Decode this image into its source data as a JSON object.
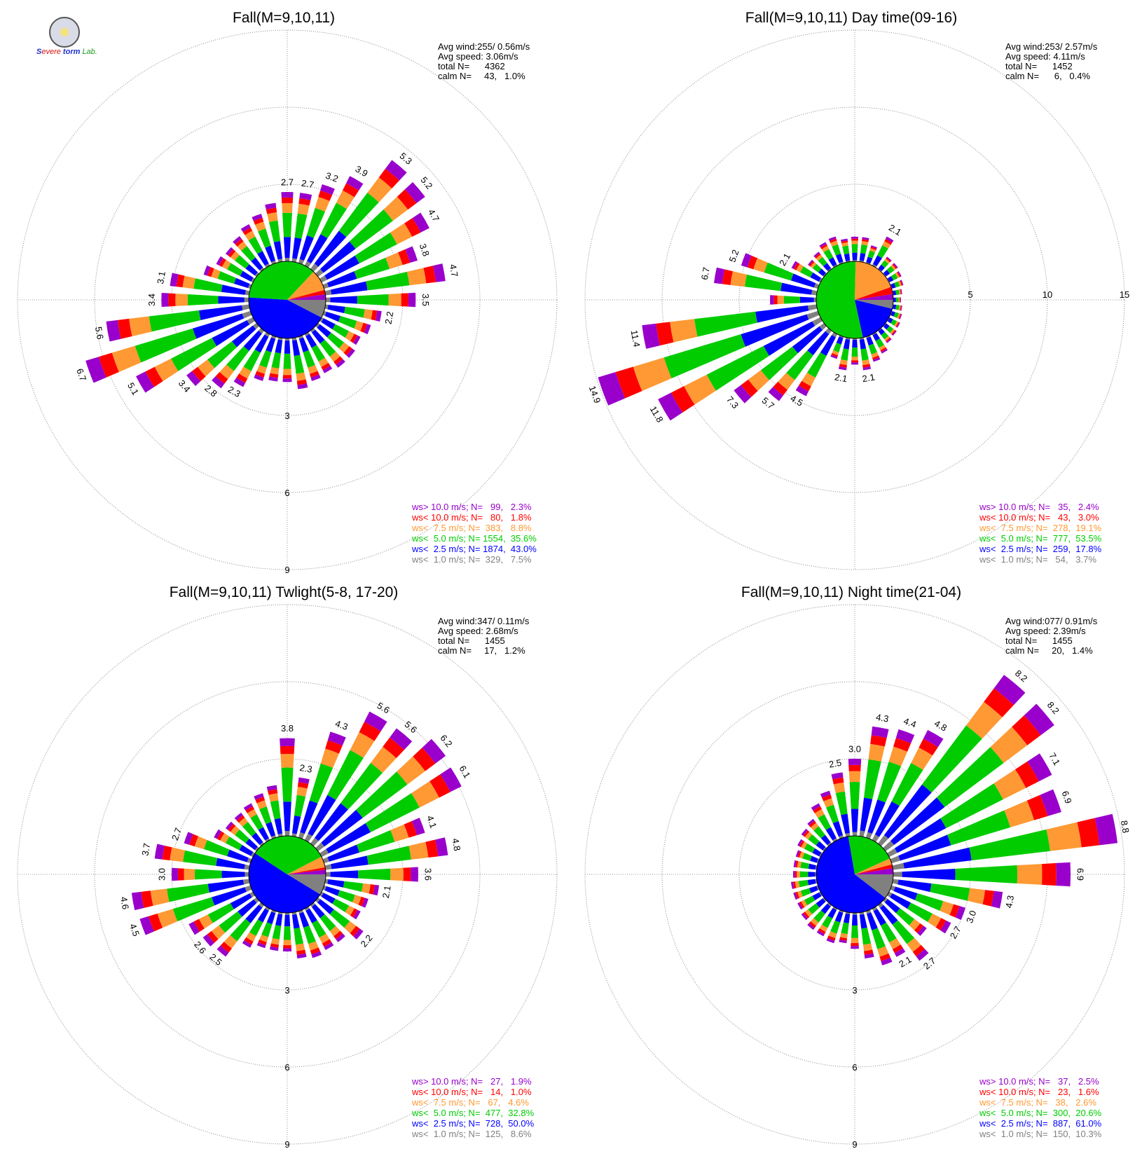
{
  "logo": {
    "text_a": "S",
    "text_b": "evere",
    "text_c": "torm",
    "text_d": "Lab.",
    "icon": "university-seal-icon"
  },
  "colors": {
    "c1": "#808080",
    "c25": "#0000ff",
    "c5": "#00cc00",
    "c75": "#ff9933",
    "c10": "#ff0000",
    "cgt10": "#9900cc"
  },
  "chart_data": [
    {
      "type": "wind-rose",
      "title": "Fall(M=9,10,11)",
      "stats": {
        "avg_wind": "Avg wind:255/ 0.56m/s",
        "avg_speed": "Avg speed: 3.06m/s",
        "total": "total N=      4362",
        "calm": "calm N=     43,   1.0%"
      },
      "rings": [
        3,
        6,
        9
      ],
      "ring_labels": [
        "3",
        "6",
        "9"
      ],
      "ring_label_pos": "south",
      "pie": [
        7.5,
        43.0,
        35.6,
        8.8,
        1.8,
        2.3
      ],
      "petals": [
        {
          "dir": 0,
          "total": 2.7,
          "label": "2.7"
        },
        {
          "dir": 10,
          "total": 2.7,
          "label": "2.7"
        },
        {
          "dir": 20,
          "total": 3.2,
          "label": "3.2"
        },
        {
          "dir": 30,
          "total": 3.9,
          "label": "3.9"
        },
        {
          "dir": 40,
          "total": 5.3,
          "label": "5.3"
        },
        {
          "dir": 50,
          "total": 5.2,
          "label": "5.2"
        },
        {
          "dir": 60,
          "total": 4.7,
          "label": "4.7"
        },
        {
          "dir": 70,
          "total": 3.8,
          "label": "3.8"
        },
        {
          "dir": 80,
          "total": 4.7,
          "label": "4.7"
        },
        {
          "dir": 90,
          "total": 3.5,
          "label": "3.5"
        },
        {
          "dir": 100,
          "total": 2.2,
          "label": "2.2"
        },
        {
          "dir": 110,
          "total": 1.9
        },
        {
          "dir": 120,
          "total": 1.7
        },
        {
          "dir": 130,
          "total": 1.8
        },
        {
          "dir": 140,
          "total": 1.8
        },
        {
          "dir": 150,
          "total": 1.7
        },
        {
          "dir": 160,
          "total": 1.8
        },
        {
          "dir": 170,
          "total": 2.0
        },
        {
          "dir": 180,
          "total": 1.7
        },
        {
          "dir": 190,
          "total": 1.7
        },
        {
          "dir": 200,
          "total": 1.8
        },
        {
          "dir": 210,
          "total": 2.3,
          "label": "2.3"
        },
        {
          "dir": 220,
          "total": 2.8,
          "label": "2.8"
        },
        {
          "dir": 230,
          "total": 3.4,
          "label": "3.4"
        },
        {
          "dir": 240,
          "total": 5.1,
          "label": "5.1"
        },
        {
          "dir": 250,
          "total": 6.7,
          "label": "6.7"
        },
        {
          "dir": 260,
          "total": 5.6,
          "label": "5.6"
        },
        {
          "dir": 270,
          "total": 3.4,
          "label": "3.4"
        },
        {
          "dir": 280,
          "total": 3.1,
          "label": "3.1"
        },
        {
          "dir": 290,
          "total": 1.9
        },
        {
          "dir": 300,
          "total": 1.6
        },
        {
          "dir": 310,
          "total": 1.5
        },
        {
          "dir": 320,
          "total": 1.6
        },
        {
          "dir": 330,
          "total": 1.8
        },
        {
          "dir": 340,
          "total": 2.0
        },
        {
          "dir": 350,
          "total": 2.3
        }
      ],
      "legend": [
        {
          "key": "cgt10",
          "label": "ws> 10.0 m/s; N=",
          "n": "99",
          "pct": "2.3%"
        },
        {
          "key": "c10",
          "label": "ws< 10.0 m/s; N=",
          "n": "80",
          "pct": "1.8%"
        },
        {
          "key": "c75",
          "label": "ws<  7.5 m/s; N=",
          "n": "383",
          "pct": "8.8%"
        },
        {
          "key": "c5",
          "label": "ws<  5.0 m/s; N=",
          "n": "1554",
          "pct": "35.6%"
        },
        {
          "key": "c25",
          "label": "ws<  2.5 m/s; N=",
          "n": "1874",
          "pct": "43.0%"
        },
        {
          "key": "c1",
          "label": "ws<  1.0 m/s; N=",
          "n": "329",
          "pct": "7.5%"
        }
      ]
    },
    {
      "type": "wind-rose",
      "title": "Fall(M=9,10,11) Day time(09-16)",
      "stats": {
        "avg_wind": "Avg wind:253/ 2.57m/s",
        "avg_speed": "Avg speed: 4.11m/s",
        "total": "total N=      1452",
        "calm": "calm N=      6,   0.4%"
      },
      "rings": [
        5,
        10,
        15
      ],
      "ring_labels": [
        "5",
        "10",
        "15"
      ],
      "ring_label_pos": "east",
      "pie": [
        3.7,
        17.8,
        53.5,
        19.1,
        3.0,
        2.4
      ],
      "petals": [
        {
          "dir": 0,
          "total": 1.6
        },
        {
          "dir": 10,
          "total": 1.6
        },
        {
          "dir": 20,
          "total": 1.2
        },
        {
          "dir": 30,
          "total": 2.1,
          "label": "2.1"
        },
        {
          "dir": 40,
          "total": 1.0
        },
        {
          "dir": 50,
          "total": 1.0
        },
        {
          "dir": 60,
          "total": 0.9
        },
        {
          "dir": 70,
          "total": 0.8
        },
        {
          "dir": 80,
          "total": 0.6
        },
        {
          "dir": 90,
          "total": 0.5
        },
        {
          "dir": 100,
          "total": 0.6
        },
        {
          "dir": 110,
          "total": 0.7
        },
        {
          "dir": 120,
          "total": 0.8
        },
        {
          "dir": 130,
          "total": 0.9
        },
        {
          "dir": 140,
          "total": 1.0
        },
        {
          "dir": 150,
          "total": 1.4
        },
        {
          "dir": 160,
          "total": 1.7
        },
        {
          "dir": 170,
          "total": 2.1,
          "label": "2.1"
        },
        {
          "dir": 180,
          "total": 1.7
        },
        {
          "dir": 190,
          "total": 2.1,
          "label": "2.1"
        },
        {
          "dir": 200,
          "total": 1.5
        },
        {
          "dir": 210,
          "total": 4.5,
          "label": "4.5"
        },
        {
          "dir": 220,
          "total": 5.7,
          "label": "5.7"
        },
        {
          "dir": 230,
          "total": 7.3,
          "label": "7.3"
        },
        {
          "dir": 240,
          "total": 11.8,
          "label": "11.8"
        },
        {
          "dir": 250,
          "total": 14.9,
          "label": "14.9"
        },
        {
          "dir": 260,
          "total": 11.4,
          "label": "11.4"
        },
        {
          "dir": 270,
          "total": 3.0
        },
        {
          "dir": 280,
          "total": 6.7,
          "label": "6.7"
        },
        {
          "dir": 290,
          "total": 5.2,
          "label": "5.2"
        },
        {
          "dir": 300,
          "total": 2.1,
          "label": "2.1"
        },
        {
          "dir": 310,
          "total": 1.3
        },
        {
          "dir": 320,
          "total": 1.4
        },
        {
          "dir": 330,
          "total": 1.7
        },
        {
          "dir": 340,
          "total": 1.8
        },
        {
          "dir": 350,
          "total": 1.5
        }
      ],
      "legend": [
        {
          "key": "cgt10",
          "label": "ws> 10.0 m/s; N=",
          "n": "35",
          "pct": "2.4%"
        },
        {
          "key": "c10",
          "label": "ws< 10.0 m/s; N=",
          "n": "43",
          "pct": "3.0%"
        },
        {
          "key": "c75",
          "label": "ws<  7.5 m/s; N=",
          "n": "278",
          "pct": "19.1%"
        },
        {
          "key": "c5",
          "label": "ws<  5.0 m/s; N=",
          "n": "777",
          "pct": "53.5%"
        },
        {
          "key": "c25",
          "label": "ws<  2.5 m/s; N=",
          "n": "259",
          "pct": "17.8%"
        },
        {
          "key": "c1",
          "label": "ws<  1.0 m/s; N=",
          "n": "54",
          "pct": "3.7%"
        }
      ]
    },
    {
      "type": "wind-rose",
      "title": "Fall(M=9,10,11) Twlight(5-8, 17-20)",
      "stats": {
        "avg_wind": "Avg wind:347/ 0.11m/s",
        "avg_speed": "Avg speed: 2.68m/s",
        "total": "total N=      1455",
        "calm": "calm N=     17,   1.2%"
      },
      "rings": [
        3,
        6,
        9
      ],
      "ring_labels": [
        "3",
        "6",
        "9"
      ],
      "ring_label_pos": "south",
      "pie": [
        8.6,
        50.0,
        32.8,
        4.6,
        1.0,
        1.9
      ],
      "petals": [
        {
          "dir": 0,
          "total": 3.8,
          "label": "3.8"
        },
        {
          "dir": 10,
          "total": 2.3,
          "label": "2.3"
        },
        {
          "dir": 20,
          "total": 4.3,
          "label": "4.3"
        },
        {
          "dir": 30,
          "total": 5.6,
          "label": "5.6"
        },
        {
          "dir": 40,
          "total": 5.6,
          "label": "5.6"
        },
        {
          "dir": 50,
          "total": 6.2,
          "label": "6.2"
        },
        {
          "dir": 60,
          "total": 6.1,
          "label": "6.1"
        },
        {
          "dir": 70,
          "total": 4.1,
          "label": "4.1"
        },
        {
          "dir": 80,
          "total": 4.8,
          "label": "4.8"
        },
        {
          "dir": 90,
          "total": 3.6,
          "label": "3.6"
        },
        {
          "dir": 100,
          "total": 2.1,
          "label": "2.1"
        },
        {
          "dir": 110,
          "total": 1.8
        },
        {
          "dir": 120,
          "total": 1.7
        },
        {
          "dir": 130,
          "total": 2.2,
          "label": "2.2"
        },
        {
          "dir": 140,
          "total": 1.8
        },
        {
          "dir": 150,
          "total": 1.8
        },
        {
          "dir": 160,
          "total": 1.9
        },
        {
          "dir": 170,
          "total": 1.8
        },
        {
          "dir": 180,
          "total": 1.5
        },
        {
          "dir": 190,
          "total": 1.5
        },
        {
          "dir": 200,
          "total": 1.5
        },
        {
          "dir": 210,
          "total": 1.7
        },
        {
          "dir": 220,
          "total": 2.5,
          "label": "2.5"
        },
        {
          "dir": 230,
          "total": 2.6,
          "label": "2.6"
        },
        {
          "dir": 240,
          "total": 2.8
        },
        {
          "dir": 250,
          "total": 4.5,
          "label": "4.5"
        },
        {
          "dir": 260,
          "total": 4.6,
          "label": "4.6"
        },
        {
          "dir": 270,
          "total": 3.0,
          "label": "3.0"
        },
        {
          "dir": 280,
          "total": 3.7,
          "label": "3.7"
        },
        {
          "dir": 290,
          "total": 2.7,
          "label": "2.7"
        },
        {
          "dir": 300,
          "total": 1.7
        },
        {
          "dir": 310,
          "total": 1.5
        },
        {
          "dir": 320,
          "total": 1.5
        },
        {
          "dir": 330,
          "total": 1.6
        },
        {
          "dir": 340,
          "total": 1.8
        },
        {
          "dir": 350,
          "total": 2.0
        }
      ],
      "legend": [
        {
          "key": "cgt10",
          "label": "ws> 10.0 m/s; N=",
          "n": "27",
          "pct": "1.9%"
        },
        {
          "key": "c10",
          "label": "ws< 10.0 m/s; N=",
          "n": "14",
          "pct": "1.0%"
        },
        {
          "key": "c75",
          "label": "ws<  7.5 m/s; N=",
          "n": "67",
          "pct": "4.6%"
        },
        {
          "key": "c5",
          "label": "ws<  5.0 m/s; N=",
          "n": "477",
          "pct": "32.8%"
        },
        {
          "key": "c25",
          "label": "ws<  2.5 m/s; N=",
          "n": "728",
          "pct": "50.0%"
        },
        {
          "key": "c1",
          "label": "ws<  1.0 m/s; N=",
          "n": "125",
          "pct": "8.6%"
        }
      ]
    },
    {
      "type": "wind-rose",
      "title": "Fall(M=9,10,11) Night time(21-04)",
      "stats": {
        "avg_wind": "Avg wind:077/ 0.91m/s",
        "avg_speed": "Avg speed: 2.39m/s",
        "total": "total N=      1455",
        "calm": "calm N=     20,   1.4%"
      },
      "rings": [
        3,
        6,
        9
      ],
      "ring_labels": [
        "3",
        "6",
        "9"
      ],
      "ring_label_pos": "south",
      "pie": [
        10.3,
        61.0,
        20.6,
        2.6,
        1.6,
        2.5
      ],
      "petals": [
        {
          "dir": 0,
          "total": 3.0,
          "label": "3.0"
        },
        {
          "dir": 10,
          "total": 4.3,
          "label": "4.3"
        },
        {
          "dir": 20,
          "total": 4.4,
          "label": "4.4"
        },
        {
          "dir": 30,
          "total": 4.8,
          "label": "4.8"
        },
        {
          "dir": 40,
          "total": 8.2,
          "label": "8.2"
        },
        {
          "dir": 50,
          "total": 8.2,
          "label": "8.2"
        },
        {
          "dir": 60,
          "total": 7.1,
          "label": "7.1"
        },
        {
          "dir": 70,
          "total": 6.9,
          "label": "6.9"
        },
        {
          "dir": 80,
          "total": 8.8,
          "label": "8.8"
        },
        {
          "dir": 90,
          "total": 6.9,
          "label": "6.9"
        },
        {
          "dir": 100,
          "total": 4.3,
          "label": "4.3"
        },
        {
          "dir": 110,
          "total": 3.0,
          "label": "3.0"
        },
        {
          "dir": 120,
          "total": 2.7,
          "label": "2.7"
        },
        {
          "dir": 130,
          "total": 2.0
        },
        {
          "dir": 140,
          "total": 2.7,
          "label": "2.7"
        },
        {
          "dir": 150,
          "total": 2.1,
          "label": "2.1"
        },
        {
          "dir": 160,
          "total": 2.2
        },
        {
          "dir": 170,
          "total": 1.8
        },
        {
          "dir": 180,
          "total": 1.4
        },
        {
          "dir": 190,
          "total": 1.2
        },
        {
          "dir": 200,
          "total": 1.3
        },
        {
          "dir": 210,
          "total": 1.2
        },
        {
          "dir": 220,
          "total": 1.2
        },
        {
          "dir": 230,
          "total": 1.1
        },
        {
          "dir": 240,
          "total": 1.0
        },
        {
          "dir": 250,
          "total": 1.0
        },
        {
          "dir": 260,
          "total": 1.0
        },
        {
          "dir": 270,
          "total": 0.9
        },
        {
          "dir": 280,
          "total": 0.9
        },
        {
          "dir": 290,
          "total": 0.9
        },
        {
          "dir": 300,
          "total": 1.0
        },
        {
          "dir": 310,
          "total": 1.1
        },
        {
          "dir": 320,
          "total": 1.2
        },
        {
          "dir": 330,
          "total": 1.6
        },
        {
          "dir": 340,
          "total": 1.9
        },
        {
          "dir": 350,
          "total": 2.5,
          "label": "2.5"
        }
      ],
      "legend": [
        {
          "key": "cgt10",
          "label": "ws> 10.0 m/s; N=",
          "n": "37",
          "pct": "2.5%"
        },
        {
          "key": "c10",
          "label": "ws< 10.0 m/s; N=",
          "n": "23",
          "pct": "1.6%"
        },
        {
          "key": "c75",
          "label": "ws<  7.5 m/s; N=",
          "n": "38",
          "pct": "2.6%"
        },
        {
          "key": "c5",
          "label": "ws<  5.0 m/s; N=",
          "n": "300",
          "pct": "20.6%"
        },
        {
          "key": "c25",
          "label": "ws<  2.5 m/s; N=",
          "n": "887",
          "pct": "61.0%"
        },
        {
          "key": "c1",
          "label": "ws<  1.0 m/s; N=",
          "n": "150",
          "pct": "10.3%"
        }
      ]
    }
  ]
}
